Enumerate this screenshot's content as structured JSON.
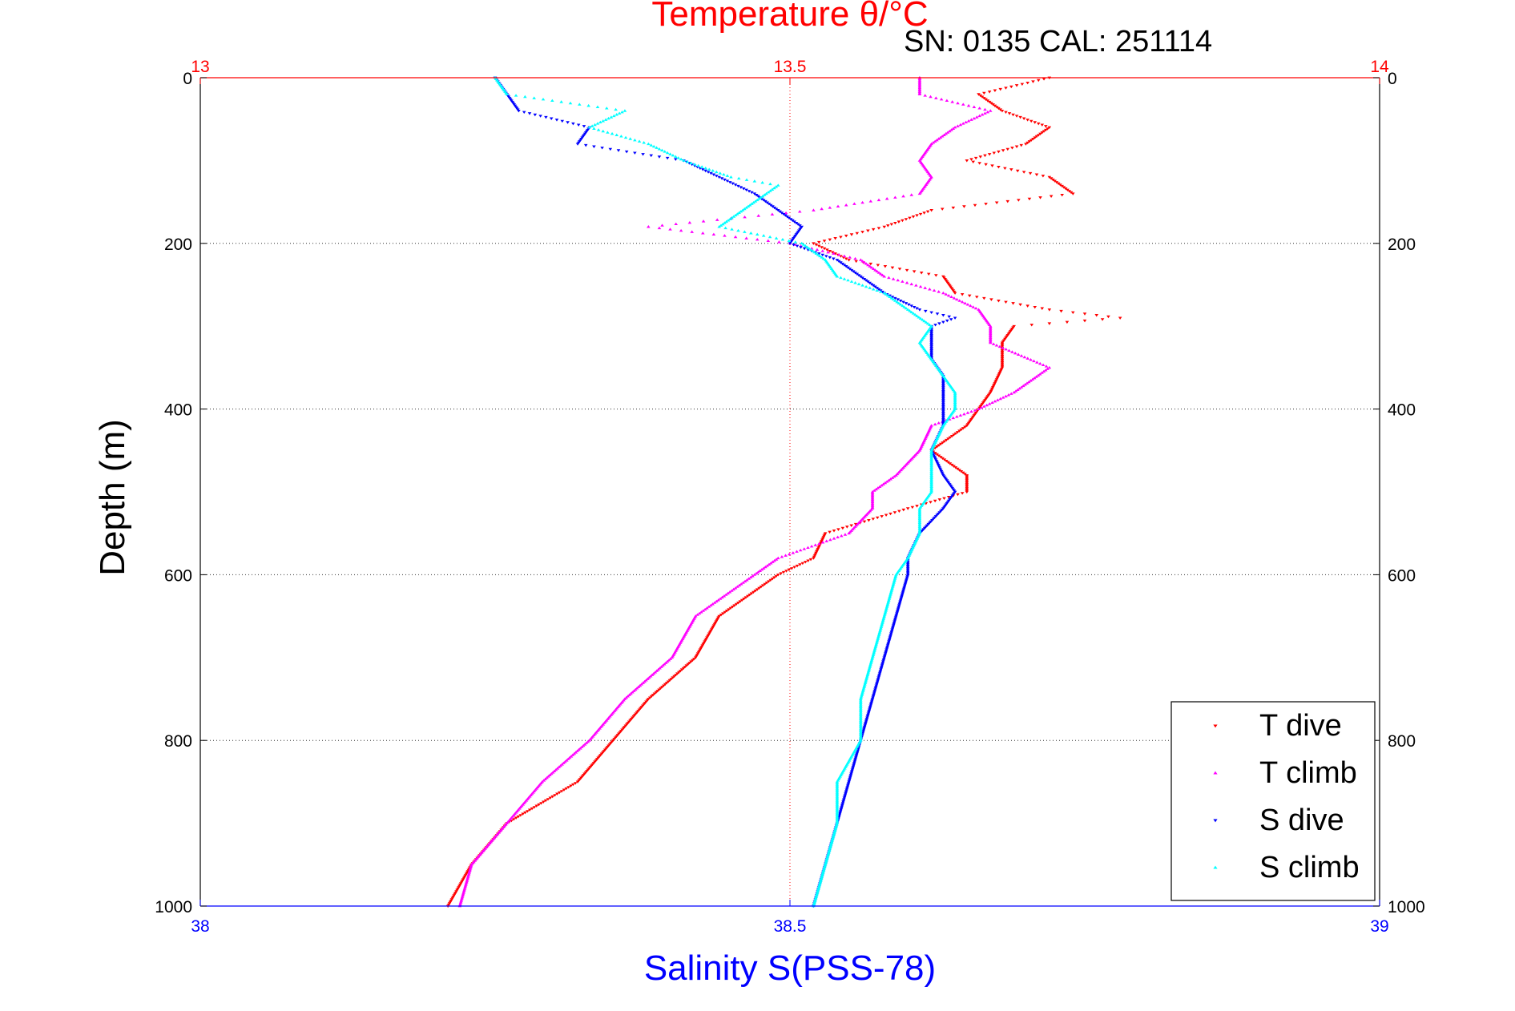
{
  "chart_data": {
    "type": "scatter",
    "title": "Temperature θ/°C",
    "subtitle": "SN: 0135  CAL: 251114",
    "ylabel": "Depth (m)",
    "xlabel_bottom": "Salinity S(PSS-78)",
    "y_axis": {
      "range": [
        0,
        1000
      ],
      "reversed": true,
      "ticks": [
        0,
        200,
        400,
        600,
        800,
        1000
      ]
    },
    "x_top": {
      "quantity": "Temperature",
      "range": [
        13,
        14
      ],
      "ticks": [
        "13",
        "13.5",
        "14"
      ],
      "color": "#ff0000"
    },
    "x_bottom": {
      "quantity": "Salinity",
      "range": [
        38,
        39
      ],
      "ticks": [
        "38",
        "38.5",
        "39"
      ],
      "color": "#0000ff"
    },
    "grid": true,
    "legend_position": "bottom-right",
    "series": [
      {
        "name": "T dive",
        "axis": "temperature",
        "color": "#ff0000",
        "marker": "down-triangle",
        "points": [
          [
            0,
            13.72
          ],
          [
            20,
            13.66
          ],
          [
            40,
            13.68
          ],
          [
            60,
            13.72
          ],
          [
            80,
            13.7
          ],
          [
            100,
            13.65
          ],
          [
            120,
            13.72
          ],
          [
            140,
            13.74
          ],
          [
            160,
            13.62
          ],
          [
            180,
            13.58
          ],
          [
            200,
            13.52
          ],
          [
            220,
            13.55
          ],
          [
            240,
            13.63
          ],
          [
            260,
            13.64
          ],
          [
            280,
            13.72
          ],
          [
            290,
            13.78
          ],
          [
            300,
            13.69
          ],
          [
            320,
            13.68
          ],
          [
            350,
            13.68
          ],
          [
            380,
            13.67
          ],
          [
            400,
            13.66
          ],
          [
            420,
            13.65
          ],
          [
            450,
            13.62
          ],
          [
            480,
            13.65
          ],
          [
            500,
            13.65
          ],
          [
            520,
            13.6
          ],
          [
            550,
            13.53
          ],
          [
            580,
            13.52
          ],
          [
            600,
            13.49
          ],
          [
            650,
            13.44
          ],
          [
            700,
            13.42
          ],
          [
            750,
            13.38
          ],
          [
            800,
            13.35
          ],
          [
            850,
            13.32
          ],
          [
            900,
            13.26
          ],
          [
            950,
            13.23
          ],
          [
            1000,
            13.21
          ]
        ]
      },
      {
        "name": "T climb",
        "axis": "temperature",
        "color": "#ff00ff",
        "marker": "up-triangle",
        "points": [
          [
            0,
            13.61
          ],
          [
            20,
            13.61
          ],
          [
            40,
            13.67
          ],
          [
            60,
            13.64
          ],
          [
            80,
            13.62
          ],
          [
            100,
            13.61
          ],
          [
            120,
            13.62
          ],
          [
            140,
            13.61
          ],
          [
            160,
            13.52
          ],
          [
            170,
            13.45
          ],
          [
            180,
            13.38
          ],
          [
            200,
            13.5
          ],
          [
            220,
            13.56
          ],
          [
            240,
            13.58
          ],
          [
            260,
            13.63
          ],
          [
            280,
            13.66
          ],
          [
            300,
            13.67
          ],
          [
            320,
            13.67
          ],
          [
            350,
            13.72
          ],
          [
            380,
            13.69
          ],
          [
            400,
            13.66
          ],
          [
            420,
            13.62
          ],
          [
            450,
            13.61
          ],
          [
            480,
            13.59
          ],
          [
            500,
            13.57
          ],
          [
            520,
            13.57
          ],
          [
            550,
            13.55
          ],
          [
            580,
            13.49
          ],
          [
            600,
            13.47
          ],
          [
            650,
            13.42
          ],
          [
            700,
            13.4
          ],
          [
            750,
            13.36
          ],
          [
            800,
            13.33
          ],
          [
            850,
            13.29
          ],
          [
            900,
            13.26
          ],
          [
            950,
            13.23
          ],
          [
            1000,
            13.22
          ]
        ]
      },
      {
        "name": "S dive",
        "axis": "salinity",
        "color": "#0000ff",
        "marker": "down-triangle",
        "points": [
          [
            0,
            38.25
          ],
          [
            20,
            38.26
          ],
          [
            40,
            38.27
          ],
          [
            60,
            38.33
          ],
          [
            80,
            38.32
          ],
          [
            100,
            38.41
          ],
          [
            120,
            38.44
          ],
          [
            140,
            38.47
          ],
          [
            160,
            38.49
          ],
          [
            180,
            38.51
          ],
          [
            200,
            38.5
          ],
          [
            220,
            38.54
          ],
          [
            240,
            38.56
          ],
          [
            260,
            38.58
          ],
          [
            280,
            38.61
          ],
          [
            290,
            38.64
          ],
          [
            300,
            38.62
          ],
          [
            320,
            38.62
          ],
          [
            340,
            38.62
          ],
          [
            360,
            38.63
          ],
          [
            380,
            38.63
          ],
          [
            400,
            38.63
          ],
          [
            420,
            38.63
          ],
          [
            450,
            38.62
          ],
          [
            480,
            38.63
          ],
          [
            500,
            38.64
          ],
          [
            520,
            38.63
          ],
          [
            550,
            38.61
          ],
          [
            580,
            38.6
          ],
          [
            600,
            38.6
          ],
          [
            650,
            38.59
          ],
          [
            700,
            38.58
          ],
          [
            750,
            38.57
          ],
          [
            800,
            38.56
          ],
          [
            850,
            38.55
          ],
          [
            900,
            38.54
          ],
          [
            950,
            38.53
          ],
          [
            1000,
            38.52
          ]
        ]
      },
      {
        "name": "S climb",
        "axis": "salinity",
        "color": "#00ffff",
        "marker": "up-triangle",
        "points": [
          [
            0,
            38.25
          ],
          [
            20,
            38.26
          ],
          [
            40,
            38.36
          ],
          [
            60,
            38.33
          ],
          [
            80,
            38.38
          ],
          [
            100,
            38.41
          ],
          [
            120,
            38.45
          ],
          [
            130,
            38.49
          ],
          [
            140,
            38.48
          ],
          [
            160,
            38.46
          ],
          [
            180,
            38.44
          ],
          [
            200,
            38.51
          ],
          [
            220,
            38.53
          ],
          [
            240,
            38.54
          ],
          [
            260,
            38.58
          ],
          [
            280,
            38.6
          ],
          [
            300,
            38.62
          ],
          [
            320,
            38.61
          ],
          [
            340,
            38.62
          ],
          [
            360,
            38.63
          ],
          [
            380,
            38.64
          ],
          [
            400,
            38.64
          ],
          [
            420,
            38.63
          ],
          [
            450,
            38.62
          ],
          [
            480,
            38.62
          ],
          [
            500,
            38.62
          ],
          [
            520,
            38.61
          ],
          [
            550,
            38.61
          ],
          [
            580,
            38.6
          ],
          [
            600,
            38.59
          ],
          [
            650,
            38.58
          ],
          [
            700,
            38.57
          ],
          [
            750,
            38.56
          ],
          [
            800,
            38.56
          ],
          [
            850,
            38.54
          ],
          [
            900,
            38.54
          ],
          [
            950,
            38.53
          ],
          [
            1000,
            38.52
          ]
        ]
      }
    ]
  }
}
